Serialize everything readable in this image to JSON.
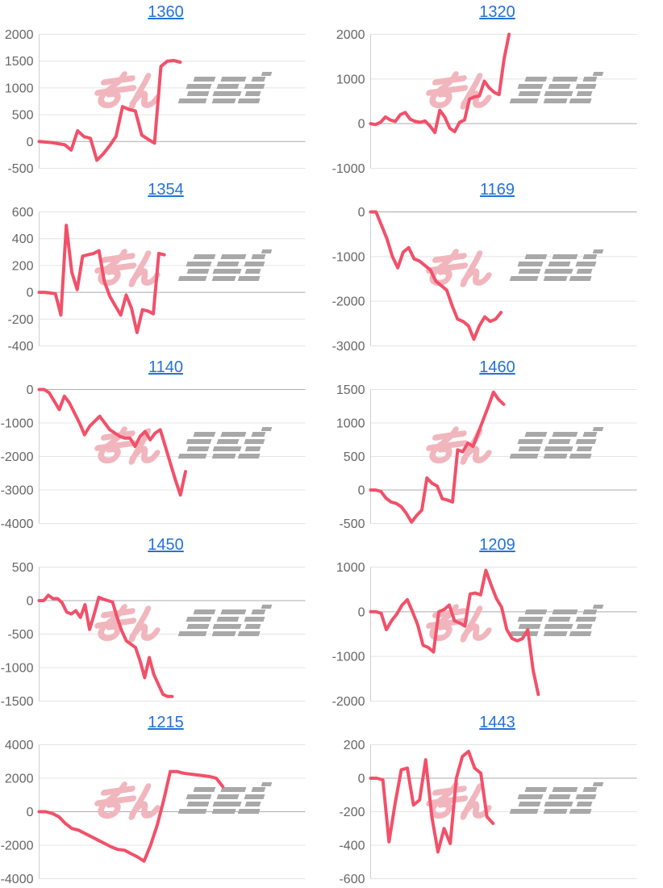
{
  "style": {
    "background": "#ffffff",
    "line_color": "#f25069",
    "grid_color": "#e4e4e4",
    "zero_line_color": "#ababab",
    "axis_line_color": "#cfcfcf",
    "tick_label_color": "#666666",
    "title_link_color": "#2272d9",
    "watermark_pink": "#f1b6bd",
    "watermark_gray": "#a8a8a8"
  },
  "watermark": {
    "pink_text": "みん",
    "gray_text": "レポ"
  },
  "chart_data": [
    {
      "type": "line",
      "title": "1360",
      "ylim": [
        -500,
        2000
      ],
      "yticks": [
        2000,
        1500,
        1000,
        500,
        0,
        -500
      ],
      "grid": true,
      "legend": "none",
      "x_span": 0.53,
      "values": [
        0,
        -10,
        -20,
        -40,
        -60,
        -160,
        200,
        90,
        60,
        -350,
        -230,
        -80,
        100,
        650,
        600,
        570,
        120,
        40,
        -30,
        1400,
        1500,
        1510,
        1480
      ]
    },
    {
      "type": "line",
      "title": "1320",
      "ylim": [
        -1000,
        2000
      ],
      "yticks": [
        2000,
        1000,
        0,
        -1000
      ],
      "grid": true,
      "legend": "none",
      "x_span": 0.52,
      "values": [
        0,
        -20,
        30,
        150,
        80,
        50,
        200,
        250,
        100,
        50,
        30,
        60,
        -50,
        -200,
        300,
        150,
        -100,
        -180,
        30,
        80,
        550,
        600,
        620,
        950,
        800,
        700,
        650,
        1450,
        2000
      ]
    },
    {
      "type": "line",
      "title": "1354",
      "ylim": [
        -400,
        600
      ],
      "yticks": [
        600,
        400,
        200,
        0,
        -200,
        -400
      ],
      "grid": true,
      "legend": "none",
      "x_span": 0.47,
      "values": [
        0,
        0,
        -5,
        -10,
        -170,
        500,
        150,
        20,
        270,
        280,
        290,
        310,
        80,
        -30,
        -100,
        -170,
        -20,
        -120,
        -300,
        -130,
        -140,
        -160,
        290,
        280
      ]
    },
    {
      "type": "line",
      "title": "1169",
      "ylim": [
        -3000,
        0
      ],
      "yticks": [
        0,
        -1000,
        -2000,
        -3000
      ],
      "grid": true,
      "legend": "none",
      "x_span": 0.49,
      "values": [
        0,
        0,
        -300,
        -600,
        -1000,
        -1250,
        -900,
        -800,
        -1050,
        -1100,
        -1200,
        -1300,
        -1550,
        -1650,
        -1750,
        -2100,
        -2400,
        -2450,
        -2550,
        -2850,
        -2550,
        -2350,
        -2450,
        -2400,
        -2250
      ]
    },
    {
      "type": "line",
      "title": "1140",
      "ylim": [
        -4000,
        0
      ],
      "yticks": [
        0,
        -1000,
        -2000,
        -3000,
        -4000
      ],
      "grid": true,
      "legend": "none",
      "x_span": 0.55,
      "values": [
        0,
        0,
        -100,
        -350,
        -600,
        -200,
        -400,
        -700,
        -1000,
        -1350,
        -1100,
        -950,
        -800,
        -1000,
        -1200,
        -1300,
        -1400,
        -1450,
        -1450,
        -1700,
        -1400,
        -1250,
        -1500,
        -1300,
        -1200,
        -1700,
        -2200,
        -2700,
        -3150,
        -2450
      ]
    },
    {
      "type": "line",
      "title": "1460",
      "ylim": [
        -500,
        1500
      ],
      "yticks": [
        1500,
        1000,
        500,
        0,
        -500
      ],
      "grid": true,
      "legend": "none",
      "x_span": 0.5,
      "values": [
        0,
        0,
        -20,
        -120,
        -180,
        -200,
        -250,
        -350,
        -480,
        -380,
        -300,
        180,
        100,
        60,
        -130,
        -150,
        -180,
        600,
        570,
        700,
        650,
        850,
        1050,
        1250,
        1460,
        1350,
        1280
      ]
    },
    {
      "type": "line",
      "title": "1450",
      "ylim": [
        -1500,
        500
      ],
      "yticks": [
        500,
        0,
        -500,
        -1000,
        -1500
      ],
      "grid": true,
      "legend": "none",
      "x_span": 0.5,
      "values": [
        0,
        0,
        80,
        30,
        30,
        -30,
        -170,
        -200,
        -150,
        -250,
        -60,
        -430,
        -200,
        50,
        20,
        0,
        -20,
        -250,
        -450,
        -600,
        -650,
        -700,
        -900,
        -1150,
        -850,
        -1100,
        -1250,
        -1400,
        -1430,
        -1430
      ]
    },
    {
      "type": "line",
      "title": "1209",
      "ylim": [
        -2000,
        1000
      ],
      "yticks": [
        1000,
        0,
        -1000,
        -2000
      ],
      "grid": true,
      "legend": "none",
      "x_span": 0.63,
      "values": [
        0,
        0,
        -30,
        -400,
        -200,
        -50,
        150,
        270,
        0,
        -300,
        -750,
        -800,
        -900,
        0,
        50,
        150,
        -200,
        -250,
        -320,
        400,
        420,
        380,
        930,
        600,
        300,
        100,
        -400,
        -600,
        -650,
        -600,
        -400,
        -1300,
        -1850
      ]
    },
    {
      "type": "line",
      "title": "1215",
      "ylim": [
        -4000,
        4000
      ],
      "yticks": [
        4000,
        2000,
        0,
        -2000,
        -4000
      ],
      "grid": true,
      "legend": "none",
      "x_span": 0.69,
      "values": [
        0,
        0,
        -100,
        -300,
        -700,
        -1000,
        -1100,
        -1300,
        -1500,
        -1700,
        -1900,
        -2100,
        -2250,
        -2300,
        -2500,
        -2700,
        -2950,
        -2000,
        -800,
        700,
        2400,
        2400,
        2300,
        2250,
        2200,
        2150,
        2100,
        2000,
        1500
      ]
    },
    {
      "type": "line",
      "title": "1443",
      "ylim": [
        -600,
        200
      ],
      "yticks": [
        200,
        0,
        -200,
        -400,
        -600
      ],
      "grid": true,
      "legend": "none",
      "x_span": 0.46,
      "values": [
        0,
        0,
        -10,
        -380,
        -150,
        50,
        60,
        -160,
        -130,
        110,
        -230,
        -440,
        -300,
        -390,
        0,
        130,
        160,
        60,
        30,
        -230,
        -270
      ]
    }
  ]
}
